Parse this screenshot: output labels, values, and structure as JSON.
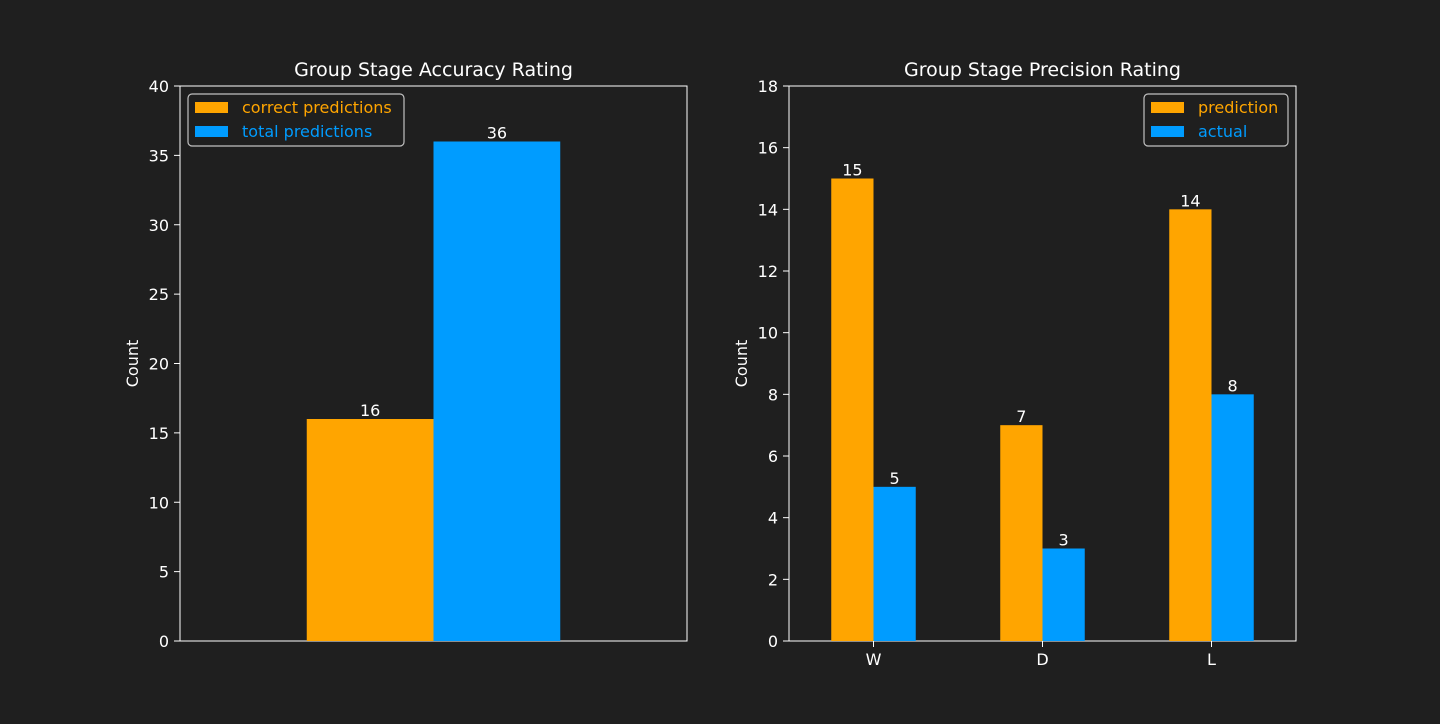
{
  "colors": {
    "background": "#1f1f1f",
    "text": "#ffffff",
    "axis": "#ffffff",
    "orange": "#ffa500",
    "blue": "#009cff",
    "legend_border": "#c0c0c0"
  },
  "chart_data": [
    {
      "type": "bar",
      "title": "Group Stage Accuracy Rating",
      "ylabel": "Count",
      "xlabel": "",
      "ylim": [
        0,
        40
      ],
      "yticks": [
        0,
        5,
        10,
        15,
        20,
        25,
        30,
        35,
        40
      ],
      "categories": [
        ""
      ],
      "grid": false,
      "legend_position": "top-left",
      "series": [
        {
          "name": "correct predictions",
          "color": "#ffa500",
          "values": [
            16
          ]
        },
        {
          "name": "total predictions",
          "color": "#009cff",
          "values": [
            36
          ]
        }
      ],
      "data_labels": true
    },
    {
      "type": "bar",
      "title": "Group Stage Precision Rating",
      "ylabel": "Count",
      "xlabel": "",
      "ylim": [
        0,
        18
      ],
      "yticks": [
        0,
        2,
        4,
        6,
        8,
        10,
        12,
        14,
        16,
        18
      ],
      "categories": [
        "W",
        "D",
        "L"
      ],
      "grid": false,
      "legend_position": "top-right",
      "series": [
        {
          "name": "prediction",
          "color": "#ffa500",
          "values": [
            15,
            7,
            14
          ]
        },
        {
          "name": "actual",
          "color": "#009cff",
          "values": [
            5,
            3,
            8
          ]
        }
      ],
      "data_labels": true
    }
  ]
}
